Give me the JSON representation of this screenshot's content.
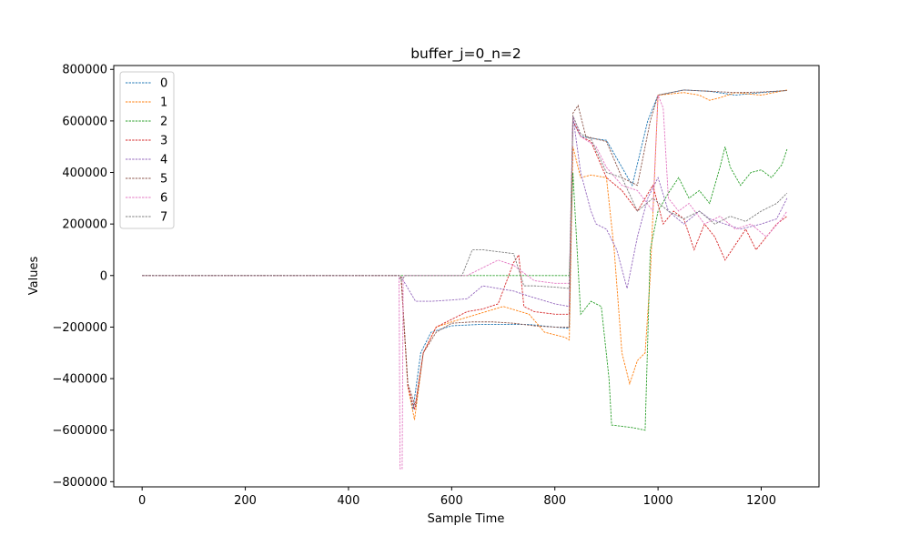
{
  "chart_data": {
    "type": "line",
    "title": "buffer_j=0_n=2",
    "xlabel": "Sample Time",
    "ylabel": "Values",
    "xlim": [
      -55,
      1312
    ],
    "ylim": [
      -820000,
      815000
    ],
    "xticks": [
      0,
      200,
      400,
      600,
      800,
      1000,
      1200
    ],
    "yticks": [
      -800000,
      -600000,
      -400000,
      -200000,
      0,
      200000,
      400000,
      600000,
      800000
    ],
    "line_style": "dashed",
    "grid": false,
    "legend_position": "top-left",
    "colors": [
      "#1f77b4",
      "#ff7f0e",
      "#2ca02c",
      "#d62728",
      "#9467bd",
      "#8c564b",
      "#e377c2",
      "#7f7f7f"
    ],
    "series": [
      {
        "name": "0",
        "x": [
          0,
          498,
          502,
          515,
          525,
          540,
          560,
          600,
          650,
          700,
          750,
          800,
          828,
          835,
          850,
          880,
          900,
          950,
          980,
          1000,
          1050,
          1100,
          1150,
          1200,
          1250
        ],
        "y": [
          0,
          0,
          -5000,
          -420000,
          -520000,
          -300000,
          -220000,
          -195000,
          -190000,
          -190000,
          -190000,
          -200000,
          -205000,
          600000,
          540000,
          530000,
          525000,
          350000,
          600000,
          700000,
          720000,
          715000,
          700000,
          710000,
          718000
        ]
      },
      {
        "name": "1",
        "x": [
          0,
          498,
          502,
          515,
          528,
          545,
          570,
          600,
          650,
          700,
          750,
          780,
          820,
          828,
          835,
          850,
          870,
          900,
          915,
          930,
          945,
          960,
          975,
          985,
          1000,
          1050,
          1080,
          1100,
          1120,
          1150,
          1200,
          1250
        ],
        "y": [
          0,
          0,
          -5000,
          -430000,
          -560000,
          -300000,
          -200000,
          -180000,
          -150000,
          -120000,
          -150000,
          -220000,
          -240000,
          -250000,
          500000,
          380000,
          390000,
          380000,
          100000,
          -300000,
          -420000,
          -330000,
          -300000,
          0,
          700000,
          710000,
          700000,
          680000,
          690000,
          710000,
          700000,
          720000
        ]
      },
      {
        "name": "2",
        "x": [
          0,
          498,
          820,
          828,
          835,
          850,
          870,
          890,
          905,
          910,
          950,
          975,
          985,
          1000,
          1020,
          1040,
          1060,
          1080,
          1100,
          1120,
          1130,
          1140,
          1160,
          1180,
          1200,
          1220,
          1240,
          1250
        ],
        "y": [
          0,
          0,
          0,
          0,
          400000,
          -150000,
          -100000,
          -120000,
          -400000,
          -580000,
          -590000,
          -600000,
          100000,
          250000,
          320000,
          380000,
          300000,
          330000,
          280000,
          420000,
          500000,
          420000,
          350000,
          400000,
          410000,
          380000,
          430000,
          490000
        ]
      },
      {
        "name": "3",
        "x": [
          0,
          498,
          502,
          515,
          528,
          545,
          570,
          600,
          630,
          660,
          690,
          720,
          730,
          740,
          760,
          800,
          828,
          835,
          850,
          870,
          900,
          930,
          960,
          990,
          1010,
          1030,
          1050,
          1070,
          1090,
          1110,
          1130,
          1150,
          1170,
          1190,
          1210,
          1230,
          1250
        ],
        "y": [
          0,
          0,
          -5000,
          -430000,
          -520000,
          -300000,
          -200000,
          -170000,
          -140000,
          -130000,
          -110000,
          50000,
          80000,
          -120000,
          -140000,
          -150000,
          -150000,
          600000,
          540000,
          520000,
          380000,
          330000,
          250000,
          350000,
          200000,
          250000,
          220000,
          100000,
          200000,
          150000,
          60000,
          120000,
          180000,
          100000,
          150000,
          200000,
          230000
        ]
      },
      {
        "name": "4",
        "x": [
          0,
          498,
          502,
          530,
          560,
          600,
          630,
          660,
          690,
          720,
          750,
          800,
          828,
          835,
          850,
          870,
          880,
          900,
          920,
          940,
          960,
          980,
          1000,
          1020,
          1050,
          1080,
          1100,
          1130,
          1160,
          1200,
          1230,
          1250
        ],
        "y": [
          0,
          0,
          -5000,
          -100000,
          -100000,
          -95000,
          -90000,
          -40000,
          -50000,
          -60000,
          -80000,
          -110000,
          -120000,
          620000,
          400000,
          250000,
          200000,
          180000,
          100000,
          -50000,
          150000,
          300000,
          380000,
          250000,
          200000,
          250000,
          220000,
          200000,
          180000,
          200000,
          220000,
          300000
        ]
      },
      {
        "name": "5",
        "x": [
          0,
          498,
          502,
          515,
          530,
          545,
          570,
          600,
          640,
          680,
          720,
          760,
          800,
          828,
          835,
          845,
          860,
          880,
          900,
          930,
          960,
          985,
          1000,
          1050,
          1100,
          1150,
          1200,
          1250
        ],
        "y": [
          0,
          0,
          -5000,
          -420000,
          -510000,
          -300000,
          -220000,
          -185000,
          -180000,
          -180000,
          -185000,
          -195000,
          -200000,
          -200000,
          630000,
          660000,
          540000,
          530000,
          520000,
          380000,
          350000,
          600000,
          700000,
          720000,
          715000,
          710000,
          712000,
          718000
        ]
      },
      {
        "name": "6",
        "x": [
          0,
          498,
          500,
          504,
          506,
          508,
          510,
          530,
          560,
          600,
          630,
          660,
          690,
          720,
          760,
          800,
          828,
          835,
          850,
          880,
          900,
          930,
          960,
          990,
          1000,
          1010,
          1020,
          1040,
          1060,
          1090,
          1120,
          1150,
          1180,
          1210,
          1240,
          1250
        ],
        "y": [
          0,
          0,
          -750000,
          -750000,
          -5000,
          0,
          0,
          0,
          0,
          0,
          0,
          30000,
          60000,
          40000,
          -20000,
          -30000,
          -30000,
          620000,
          540000,
          500000,
          420000,
          350000,
          330000,
          250000,
          700000,
          650000,
          300000,
          250000,
          280000,
          200000,
          230000,
          180000,
          200000,
          150000,
          220000,
          250000
        ]
      },
      {
        "name": "7",
        "x": [
          0,
          498,
          502,
          510,
          620,
          640,
          660,
          680,
          700,
          720,
          740,
          760,
          800,
          828,
          835,
          850,
          870,
          900,
          930,
          960,
          990,
          1020,
          1050,
          1080,
          1110,
          1140,
          1170,
          1200,
          1230,
          1250
        ],
        "y": [
          0,
          0,
          -20000,
          0,
          0,
          100000,
          100000,
          95000,
          90000,
          85000,
          -40000,
          -40000,
          -45000,
          -50000,
          620000,
          550000,
          530000,
          400000,
          380000,
          250000,
          300000,
          250000,
          220000,
          250000,
          200000,
          230000,
          210000,
          250000,
          280000,
          320000
        ]
      }
    ]
  }
}
